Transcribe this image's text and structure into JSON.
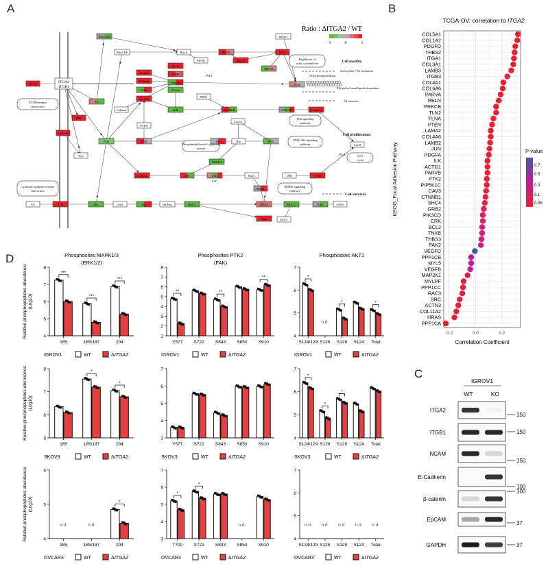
{
  "panel_labels": {
    "a": "A",
    "b": "B",
    "c": "C",
    "d": "D"
  },
  "panel_a": {
    "legend_title": "Ratio : ΔITGA2 / WT",
    "legend_ticks": [
      "-1",
      "0",
      "1"
    ],
    "legend_colors": [
      "#5cb840",
      "#74c060",
      "#8fcc80",
      "#b0b0b0",
      "#c0a0a0",
      "#d07070",
      "#e04848",
      "#e8202a"
    ],
    "nodes": [
      {
        "label": "ECM",
        "colors": [
          "#e8202a"
        ]
      },
      {
        "label": "ITGA2 ITGB1",
        "colors": [
          "#ffffff"
        ]
      },
      {
        "label": "RhoGAP",
        "colors": [
          "#a0a0a0",
          "#5cb840"
        ]
      },
      {
        "label": "RhoGEF",
        "colors": [
          "#ffffff"
        ]
      },
      {
        "label": "RhoA",
        "colors": [
          "#ffffff"
        ]
      },
      {
        "label": "Src",
        "colors": [
          "#d08080",
          "#5cb840"
        ]
      },
      {
        "label": "PKC",
        "colors": [
          "#e8202a"
        ]
      },
      {
        "label": "Caveolin",
        "colors": [
          "#e8202a"
        ]
      },
      {
        "label": "Calpain",
        "colors": [
          "#ffffff"
        ]
      },
      {
        "label": "Fyn",
        "colors": [
          "#ffffff"
        ]
      },
      {
        "label": "FAK",
        "colors": [
          "#7cc870"
        ]
      },
      {
        "label": "PTEN",
        "colors": [
          "#ffffff"
        ]
      },
      {
        "label": "PI3K",
        "colors": [
          "#e8202a",
          "#b0b0b0"
        ]
      },
      {
        "label": "Actinin",
        "colors": [
          "#e8202a"
        ]
      },
      {
        "label": "Filamin",
        "colors": [
          "#e8202a"
        ]
      },
      {
        "label": "Talin",
        "colors": [
          "#5cb840",
          "#e8202a"
        ]
      },
      {
        "label": "Paxillin",
        "colors": [
          "#e8202a"
        ]
      },
      {
        "label": "Zyxin",
        "colors": [
          "#e8202a"
        ]
      },
      {
        "label": "VASP",
        "colors": [
          "#e8202a",
          "#d06060"
        ]
      },
      {
        "label": "Vinculin",
        "colors": [
          "#5cb840",
          "#e8202a"
        ]
      },
      {
        "label": "Parvin",
        "colors": [
          "#5cb840"
        ]
      },
      {
        "label": "ILK",
        "colors": [
          "#5cb840"
        ]
      },
      {
        "label": "p130Cas",
        "colors": [
          "#e8202a"
        ]
      },
      {
        "label": "Crk",
        "colors": [
          "#e8202a",
          "#5cb840"
        ]
      },
      {
        "label": "DOCK1",
        "colors": [
          "#5cb840"
        ]
      },
      {
        "label": "C3G",
        "colors": [
          "#d08080",
          "#5cb840",
          "#e8202a"
        ]
      },
      {
        "label": "Rap1",
        "colors": [
          "#ffffff"
        ]
      },
      {
        "label": "PIP5K",
        "colors": [
          "#ffffff"
        ]
      },
      {
        "label": "ROCK",
        "colors": [
          "#e8202a",
          "#d08080"
        ]
      },
      {
        "label": "MLCP",
        "colors": [
          "#e8202a"
        ]
      },
      {
        "label": "MLC",
        "colors": [
          "#e8202a"
        ]
      },
      {
        "label": "MLCK",
        "colors": [
          "#5cb840",
          "#d08080"
        ]
      },
      {
        "label": "mDia1",
        "colors": [
          "#ffffff"
        ]
      },
      {
        "label": "Actin",
        "colors": [
          "#d08080",
          "#b0b0b0"
        ]
      },
      {
        "label": "PDK1",
        "colors": [
          "#ffffff"
        ]
      },
      {
        "label": "Akt/PKB",
        "colors": [
          "#e8202a",
          "#5cb840"
        ]
      },
      {
        "label": "GSK-3B",
        "colors": [
          "#a0a0a0",
          "#5cb840",
          "#e8202a"
        ]
      },
      {
        "label": "β-Catenin",
        "colors": [
          "#e8202a"
        ]
      },
      {
        "label": "Cdc42",
        "colors": [
          "#ffffff"
        ]
      },
      {
        "label": "Vav",
        "colors": [
          "#b0b0b0",
          "#e8202a"
        ]
      },
      {
        "label": "Rac",
        "colors": [
          "#ffffff"
        ]
      },
      {
        "label": "PAK",
        "colors": [
          "#5cb840",
          "#b0b0b0"
        ]
      },
      {
        "label": "JNK",
        "colors": [
          "#ffffff"
        ]
      },
      {
        "label": "c-Jun",
        "colors": [
          "#e8202a"
        ]
      },
      {
        "label": "B-Raf",
        "colors": [
          "#a0a0a0",
          "#e8202a"
        ]
      },
      {
        "label": "MEK1",
        "colors": [
          "#d07070"
        ]
      },
      {
        "label": "ERK1/2",
        "colors": [
          "#5cb840"
        ]
      },
      {
        "label": "Elk1",
        "colors": [
          "#a0a0a0",
          "#5cb840"
        ]
      },
      {
        "label": "Bad",
        "colors": [
          "#e8202a"
        ]
      },
      {
        "label": "Bcl-2",
        "colors": [
          "#ffffff"
        ]
      },
      {
        "label": "GF",
        "colors": [
          "#ffffff"
        ]
      },
      {
        "label": "RTK",
        "colors": [
          "#e8202a"
        ]
      },
      {
        "label": "Shc",
        "colors": [
          "#5cb840"
        ]
      },
      {
        "label": "Grb2",
        "colors": [
          "#ffffff"
        ]
      },
      {
        "label": "Sos",
        "colors": [
          "#5cb840",
          "#e8202a"
        ]
      },
      {
        "label": "Ha-Ras",
        "colors": [
          "#ffffff"
        ]
      },
      {
        "label": "Raf-1",
        "colors": [
          "#5cb840"
        ]
      },
      {
        "label": "cIAPs",
        "colors": [
          "#ffffff"
        ]
      },
      {
        "label": "CycD",
        "colors": [
          "#ffffff"
        ]
      }
    ],
    "pathways": [
      "ECM-receptor interaction",
      "Cytokine-cytokine receptor interaction",
      "Regulation of actin cytoskeleton",
      "Wnt signaling pathway",
      "PI3K-Akt signaling pathway",
      "Phosphatidylinositol signaling system",
      "MAPK signaling pathway",
      "Cell cycle"
    ],
    "outcomes": [
      "Cell motility",
      "Stress fiber / FA formation",
      "Actin polymerization",
      "Filopodia Lamellipodia formation",
      "FA turnover",
      "Cell proliferation",
      "Cell survival",
      "DNA",
      "PIP3",
      "C3G"
    ]
  },
  "chart_data": [
    {
      "id": "B",
      "type": "scatter",
      "title": "TCGA-OV: correlation to ITGA2",
      "title_prefix": "TCGA-OV: correlation to ",
      "title_italic": "ITGA2",
      "xlabel": "Correlation Coefficient",
      "ylabel": "KEGG_Focal Adhesion Pathway",
      "xlim": [
        -0.24,
        0.34
      ],
      "xticks": [
        "-0.2",
        "0.0",
        "0.2"
      ],
      "xtick_values": [
        -0.2,
        0.0,
        0.2
      ],
      "grid": true,
      "legend": {
        "title": "P-value",
        "ticks": [
          "0.7",
          "0.5",
          "0.3",
          "0.1",
          "0.05"
        ],
        "tick_values": [
          0.7,
          0.5,
          0.3,
          0.1,
          0.05
        ],
        "placement": "right"
      },
      "genes": [
        "COL5A1",
        "COL1A2",
        "PDGFD",
        "THBS2",
        "ITGA1",
        "COL3A1",
        "LAMB3",
        "ITGB3",
        "COL4A1",
        "COL6A6",
        "PARVA",
        "RELN",
        "PRKCB",
        "TLN2",
        "FLNA",
        "PTEN",
        "LAMA2",
        "COL4A6",
        "LAMB2",
        "JUN",
        "PDGFA",
        "ILK",
        "ACTG1",
        "PARVB",
        "PTK2",
        "PIP5K1C",
        "CAV3",
        "CTNNB1",
        "SHC4",
        "GRB2",
        "PIK3CD",
        "CRK",
        "BCL2",
        "TNXB",
        "THBS3",
        "PAK2",
        "VEGFD",
        "PPP1CB",
        "MYL5",
        "VEGFB",
        "MAP2K1",
        "MYLPF",
        "PPP1CC",
        "RAC3",
        "SRC",
        "ACTN3",
        "COL11A2",
        "HRAS",
        "PPP1CA"
      ],
      "correlation": [
        0.32,
        0.315,
        0.3,
        0.295,
        0.29,
        0.285,
        0.27,
        0.24,
        0.21,
        0.205,
        0.19,
        0.175,
        0.155,
        0.155,
        0.135,
        0.125,
        0.115,
        0.115,
        0.11,
        0.105,
        0.1,
        0.09,
        0.09,
        0.09,
        0.085,
        0.085,
        0.08,
        0.075,
        0.07,
        0.062,
        0.055,
        0.055,
        0.05,
        0.05,
        0.045,
        0.04,
        -0.005,
        -0.033,
        -0.033,
        -0.04,
        -0.06,
        -0.09,
        -0.095,
        -0.1,
        -0.12,
        -0.13,
        -0.145,
        -0.16,
        -0.225
      ],
      "p_value": [
        0.01,
        0.01,
        0.01,
        0.01,
        0.01,
        0.01,
        0.01,
        0.01,
        0.01,
        0.01,
        0.01,
        0.01,
        0.01,
        0.01,
        0.01,
        0.01,
        0.01,
        0.01,
        0.01,
        0.01,
        0.02,
        0.03,
        0.03,
        0.03,
        0.03,
        0.03,
        0.04,
        0.05,
        0.06,
        0.15,
        0.2,
        0.2,
        0.25,
        0.25,
        0.3,
        0.3,
        0.8,
        0.4,
        0.4,
        0.35,
        0.15,
        0.05,
        0.05,
        0.04,
        0.03,
        0.03,
        0.02,
        0.02,
        0.01
      ]
    },
    {
      "id": "D",
      "type": "bar",
      "series_names": [
        "WT",
        "ΔITGA2"
      ],
      "series_italic": "ITGA2",
      "series_colors": [
        "#ffffff",
        "#e84040"
      ],
      "ylabel": "Relative phosphopeptides abundance (Log10)",
      "nd_label": "n.d.",
      "subplots": [
        {
          "title": [
            "Phosphosites  MAPK1/3",
            "(ERK1/2)"
          ],
          "cell_line": "IGROV1",
          "ylim": [
            4,
            8
          ],
          "yticks": [
            4,
            5,
            6,
            7,
            8
          ],
          "categories": [
            "185",
            "185/187",
            "204"
          ],
          "wt": [
            7.25,
            5.88,
            6.88
          ],
          "ko": [
            6.0,
            4.78,
            5.27
          ],
          "sig": [
            "***",
            "***",
            "***"
          ]
        },
        {
          "title": [
            "Phosphosites  PTK2",
            "(FAK)"
          ],
          "cell_line": "IGROV1",
          "ylim": [
            1,
            8
          ],
          "yticks": [
            1,
            2,
            3,
            4,
            5,
            6,
            7,
            8
          ],
          "categories": [
            "Y577",
            "S722",
            "S843",
            "S850",
            "S910"
          ],
          "wt": [
            4.78,
            5.6,
            4.7,
            6.0,
            5.7
          ],
          "ko": [
            2.25,
            5.3,
            3.98,
            5.75,
            6.2
          ],
          "sig": [
            "**",
            "",
            "**",
            "",
            "**"
          ]
        },
        {
          "title": [
            "Phosphosites  AKT1"
          ],
          "cell_line": "IGROV1",
          "ylim": [
            4,
            7
          ],
          "yticks": [
            4,
            5,
            6,
            7
          ],
          "categories": [
            "S124/129",
            "S126",
            "S129",
            "S124",
            "Total"
          ],
          "wt": [
            6.25,
            null,
            5.15,
            5.45,
            5.12
          ],
          "ko": [
            6.0,
            null,
            4.75,
            5.18,
            4.95
          ],
          "sig": [
            "*",
            "",
            "*",
            "",
            "*"
          ]
        },
        {
          "title": [],
          "cell_line": "SKOV3",
          "ylim": [
            5,
            8
          ],
          "yticks": [
            5,
            6,
            7,
            8
          ],
          "categories": [
            "185",
            "185/187",
            "204"
          ],
          "wt": [
            6.35,
            7.55,
            7.05
          ],
          "ko": [
            6.1,
            7.2,
            6.78
          ],
          "sig": [
            "",
            "*",
            "*"
          ]
        },
        {
          "title": [],
          "cell_line": "SKOV3",
          "ylim": [
            3,
            7
          ],
          "yticks": [
            3,
            4,
            5,
            6,
            7
          ],
          "categories": [
            "Y577",
            "S722",
            "S843",
            "S850",
            "S910"
          ],
          "wt": [
            3.6,
            5.55,
            4.45,
            5.97,
            5.98
          ],
          "ko": [
            3.6,
            5.5,
            4.3,
            5.93,
            6.12
          ],
          "sig": [
            "",
            "",
            "",
            "",
            ""
          ]
        },
        {
          "title": [],
          "cell_line": "SKOV3",
          "ylim": [
            4,
            7
          ],
          "yticks": [
            4,
            5,
            6,
            7
          ],
          "categories": [
            "S124/129",
            "S126",
            "S129",
            "S124",
            "Total"
          ],
          "wt": [
            6.38,
            5.15,
            5.68,
            5.48,
            6.15
          ],
          "ko": [
            6.15,
            4.85,
            5.52,
            5.15,
            6.02
          ],
          "sig": [
            "*",
            "*",
            "*",
            "",
            ""
          ]
        },
        {
          "title": [],
          "cell_line": "OVCAR3",
          "ylim": [
            4,
            6
          ],
          "yticks": [
            4,
            5,
            6
          ],
          "categories": [
            "185",
            "185/187",
            "204"
          ],
          "wt": [
            null,
            null,
            4.85
          ],
          "ko": [
            null,
            null,
            4.45
          ],
          "sig": [
            "",
            "",
            "*"
          ]
        },
        {
          "title": [],
          "cell_line": "OVCAR3",
          "ylim": [
            3,
            7
          ],
          "yticks": [
            3,
            4,
            5,
            6,
            7
          ],
          "categories": [
            "T700",
            "S722",
            "S843",
            "S850",
            "S910"
          ],
          "wt": [
            5.2,
            5.75,
            5.6,
            null,
            5.45
          ],
          "ko": [
            4.68,
            5.35,
            5.6,
            null,
            5.28
          ],
          "sig": [
            "*",
            "*",
            "",
            "",
            ""
          ]
        },
        {
          "title": [],
          "cell_line": "OVCAR3",
          "ylim": [
            4,
            7
          ],
          "yticks": [
            4,
            5,
            6,
            7
          ],
          "categories": [
            "S124/129",
            "S126",
            "S129",
            "S124",
            "Total"
          ],
          "wt": [
            null,
            null,
            null,
            null,
            null
          ],
          "ko": [
            null,
            null,
            null,
            null,
            null
          ],
          "sig": [
            "",
            "",
            "",
            "",
            ""
          ]
        }
      ]
    }
  ],
  "panel_c": {
    "cell_line": "IGROV1",
    "lanes": [
      "WT",
      "KO"
    ],
    "blots": [
      {
        "protein": "ITGA2",
        "marker": "150",
        "band_intensity": [
          0.85,
          0.03
        ]
      },
      {
        "protein": "ITGB1",
        "marker": "150",
        "band_intensity": [
          0.9,
          0.9
        ]
      },
      {
        "protein": "NCAM",
        "marker": "150",
        "band_intensity": [
          0.9,
          0.15
        ]
      },
      {
        "protein": "E-Cadherin",
        "marker": "100",
        "band_intensity": [
          0.0,
          0.85
        ]
      },
      {
        "protein": "β-catenin",
        "marker": "100",
        "band_intensity": [
          0.15,
          0.85
        ]
      },
      {
        "protein": "EpCAM",
        "marker": "37",
        "band_intensity": [
          0.35,
          0.9
        ]
      },
      {
        "protein": "GAPDH",
        "marker": "37",
        "band_intensity": [
          0.95,
          0.8
        ]
      }
    ]
  }
}
